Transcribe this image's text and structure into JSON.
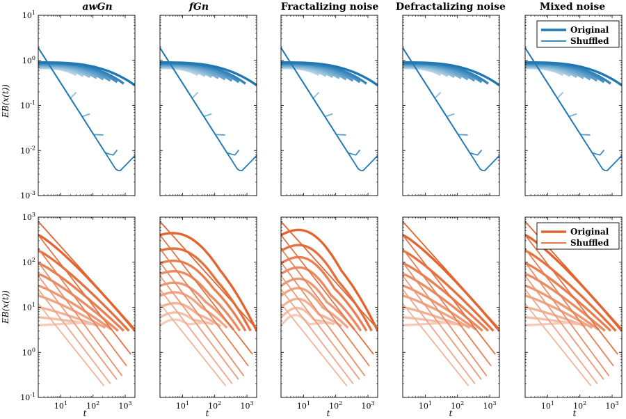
{
  "chart_data": [
    {
      "type": "line",
      "row": "top",
      "columns": [
        "awGn",
        "fGn",
        "Fractalizing noise",
        "Defractalizing noise",
        "Mixed noise"
      ],
      "title_italic": [
        true,
        true,
        false,
        false,
        false
      ],
      "xlabel": "t",
      "ylabel": "EB(x(t))",
      "xscale": "log",
      "yscale": "log",
      "xlim": [
        2,
        2000
      ],
      "ylim": [
        0.001,
        10
      ],
      "xticks": [
        10,
        100,
        1000
      ],
      "yticks": [
        0.001,
        0.01,
        0.1,
        1,
        10
      ],
      "xtick_labels": [
        "10^1",
        "10^2",
        "10^3"
      ],
      "ytick_labels": [
        "10^-3",
        "10^-2",
        "10^-1",
        "10^0",
        "10^1"
      ],
      "color": "#1f78b4",
      "legend": {
        "entries": [
          "Original",
          "Shuffled"
        ],
        "placement": "top-right",
        "panel": 4
      },
      "original_endpoints_t": [
        30,
        50,
        80,
        130,
        210,
        340,
        560,
        900,
        2000
      ],
      "original_start_y": [
        0.65,
        0.9
      ],
      "original_end_y": [
        0.35,
        0.28
      ],
      "shuffled_start_y": 1.9,
      "shuffled_min_y": 0.004,
      "shuffled_min_t": 1000,
      "shuffled_endpoints_t": [
        30,
        80,
        210,
        560,
        2000
      ],
      "shuffled_end_y": [
        0.05,
        0.022,
        0.01,
        0.006,
        0.0045
      ]
    },
    {
      "type": "line",
      "row": "bottom",
      "columns": [
        "awGn",
        "fGn",
        "Fractalizing noise",
        "Defractalizing noise",
        "Mixed noise"
      ],
      "xlabel": "t",
      "ylabel": "EB(x(t))",
      "xscale": "log",
      "yscale": "log",
      "xlim": [
        2,
        2000
      ],
      "ylim": [
        0.1,
        1000
      ],
      "xticks": [
        10,
        100,
        1000
      ],
      "yticks": [
        0.1,
        1,
        10,
        100,
        1000
      ],
      "xtick_labels": [
        "10^1",
        "10^2",
        "10^3"
      ],
      "ytick_labels": [
        "10^-1",
        "10^0",
        "10^1",
        "10^2",
        "10^3"
      ],
      "color": "#e2652f",
      "legend": {
        "entries": [
          "Original",
          "Shuffled"
        ],
        "placement": "top-right",
        "panel": 4
      },
      "original_start_y": [
        400,
        180,
        95,
        55,
        30,
        18,
        10,
        6,
        4
      ],
      "original_end_t": [
        2000,
        1300,
        900,
        600,
        380,
        240,
        150,
        90,
        50
      ],
      "original_end_y": [
        3,
        3,
        3,
        3,
        3.2,
        3.5,
        3.8,
        4.2,
        4.6
      ],
      "shuffled_start_y": [
        800,
        400,
        200,
        100,
        50,
        25,
        12
      ],
      "shuffled_end_t": [
        2000,
        1500,
        1100,
        800,
        550,
        350,
        220
      ],
      "shuffled_end_y": [
        3.3,
        0.9,
        0.5,
        0.3,
        0.25,
        0.2,
        0.18
      ]
    }
  ],
  "titles": {
    "c0": "awGn",
    "c1": "fGn",
    "c2": "Fractalizing noise",
    "c3": "Defractalizing noise",
    "c4": "Mixed noise"
  },
  "axes": {
    "xlabel": "t",
    "ylabel": "EB(x(t))"
  },
  "legend": {
    "original": "Original",
    "shuffled": "Shuffled"
  }
}
